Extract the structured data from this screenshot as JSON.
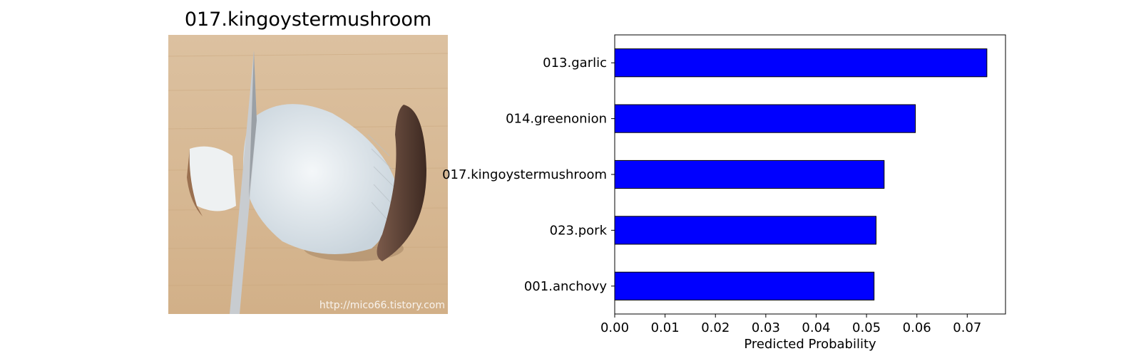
{
  "image_panel": {
    "title": "017.kingoystermushroom",
    "watermark": "http://mico66.tistory.com",
    "colors": {
      "board": "#d8b892",
      "mushroom": "#e9eef1",
      "cap": "#5a4036",
      "blade": "#c8ccd0"
    }
  },
  "chart_data": {
    "type": "bar",
    "orientation": "horizontal",
    "categories": [
      "013.garlic",
      "014.greenonion",
      "017.kingoystermushroom",
      "023.pork",
      "001.anchovy"
    ],
    "values": [
      0.0739,
      0.0597,
      0.0535,
      0.0519,
      0.0515
    ],
    "xlabel": "Predicted Probability",
    "ylabel": "",
    "title": "",
    "xlim": [
      0,
      0.0776
    ],
    "xticks": [
      "0.00",
      "0.01",
      "0.02",
      "0.03",
      "0.04",
      "0.05",
      "0.06",
      "0.07"
    ],
    "bar_color": "#0000ff",
    "edge_color": "#000000",
    "grid": false
  }
}
